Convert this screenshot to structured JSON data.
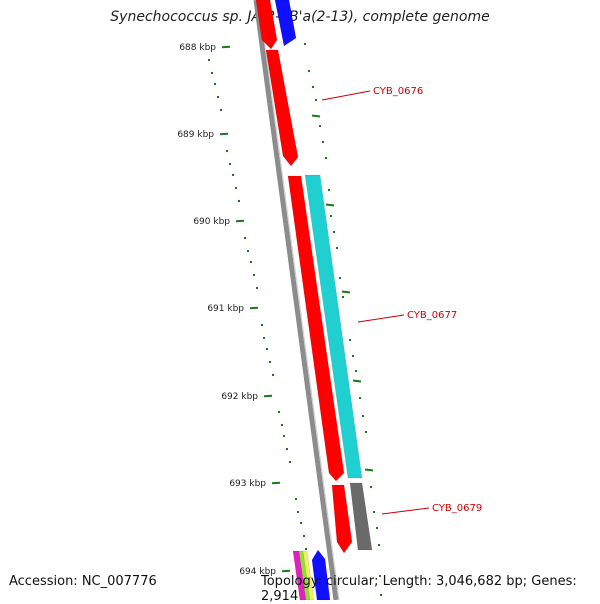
{
  "title": "Synechococcus sp. JA-2-3B'a(2-13), complete genome",
  "footer": {
    "accession": "Accession: NC_007776",
    "summary": "Topology: circular; Length: 3,046,682 bp; Genes: 2,914"
  },
  "colors": {
    "backbone": "#8c8c8c",
    "tick": "#1a7a1a",
    "label": "#cc0000",
    "gene_red": "#ff0000",
    "gene_cyan": "#20d0d0",
    "gene_gray": "#6a6a6a",
    "gene_blue": "#1010ff",
    "gene_magenta": "#e020c0",
    "gene_green": "#90e030",
    "gene_yellow": "#f0f060"
  },
  "scale": {
    "unit": "kbp",
    "labels": [
      "688 kbp",
      "689 kbp",
      "690 kbp",
      "691 kbp",
      "692 kbp",
      "693 kbp",
      "694 kbp"
    ]
  },
  "gene_labels": [
    {
      "name": "CYB_0676"
    },
    {
      "name": "CYB_0677"
    },
    {
      "name": "CYB_0679"
    }
  ]
}
